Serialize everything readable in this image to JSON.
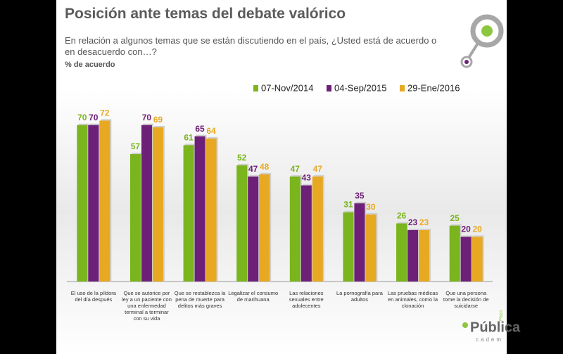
{
  "chart_data": {
    "type": "bar",
    "title": "Posición ante temas del debate valórico",
    "subtitle": "En relación a algunos temas que se están discutiendo en el país, ¿Usted está de acuerdo o en desacuerdo con…?",
    "unit_note": "% de acuerdo",
    "categories": [
      "El uso de la píldora del día después",
      "Que se autorice por ley a un paciente con una enfermedad terminal a terminar con su vida",
      "Que se restablezca la pena de muerte para delitos más graves",
      "Legalizar el consumo de marihuana",
      "Las relaciones sexuales entre adolecentes",
      "La pornografía para adultos",
      "Las pruebas médicas en animales, como la clonación",
      "Que una persona tome la decisión de suicidarse"
    ],
    "series": [
      {
        "name": "07-Nov/2014",
        "color": "#7ab51d",
        "values": [
          70,
          57,
          61,
          52,
          47,
          31,
          26,
          25
        ]
      },
      {
        "name": "04-Sep/2015",
        "color": "#6d2077",
        "values": [
          70,
          70,
          65,
          47,
          43,
          35,
          23,
          20
        ]
      },
      {
        "name": "29-Ene/2016",
        "color": "#e8a922",
        "values": [
          72,
          69,
          64,
          48,
          47,
          30,
          23,
          20
        ]
      }
    ],
    "ylim": [
      0,
      80
    ],
    "legend": "top"
  },
  "logo": {
    "top": "Plaza",
    "main": "Pública",
    "bottom": "cadem"
  }
}
